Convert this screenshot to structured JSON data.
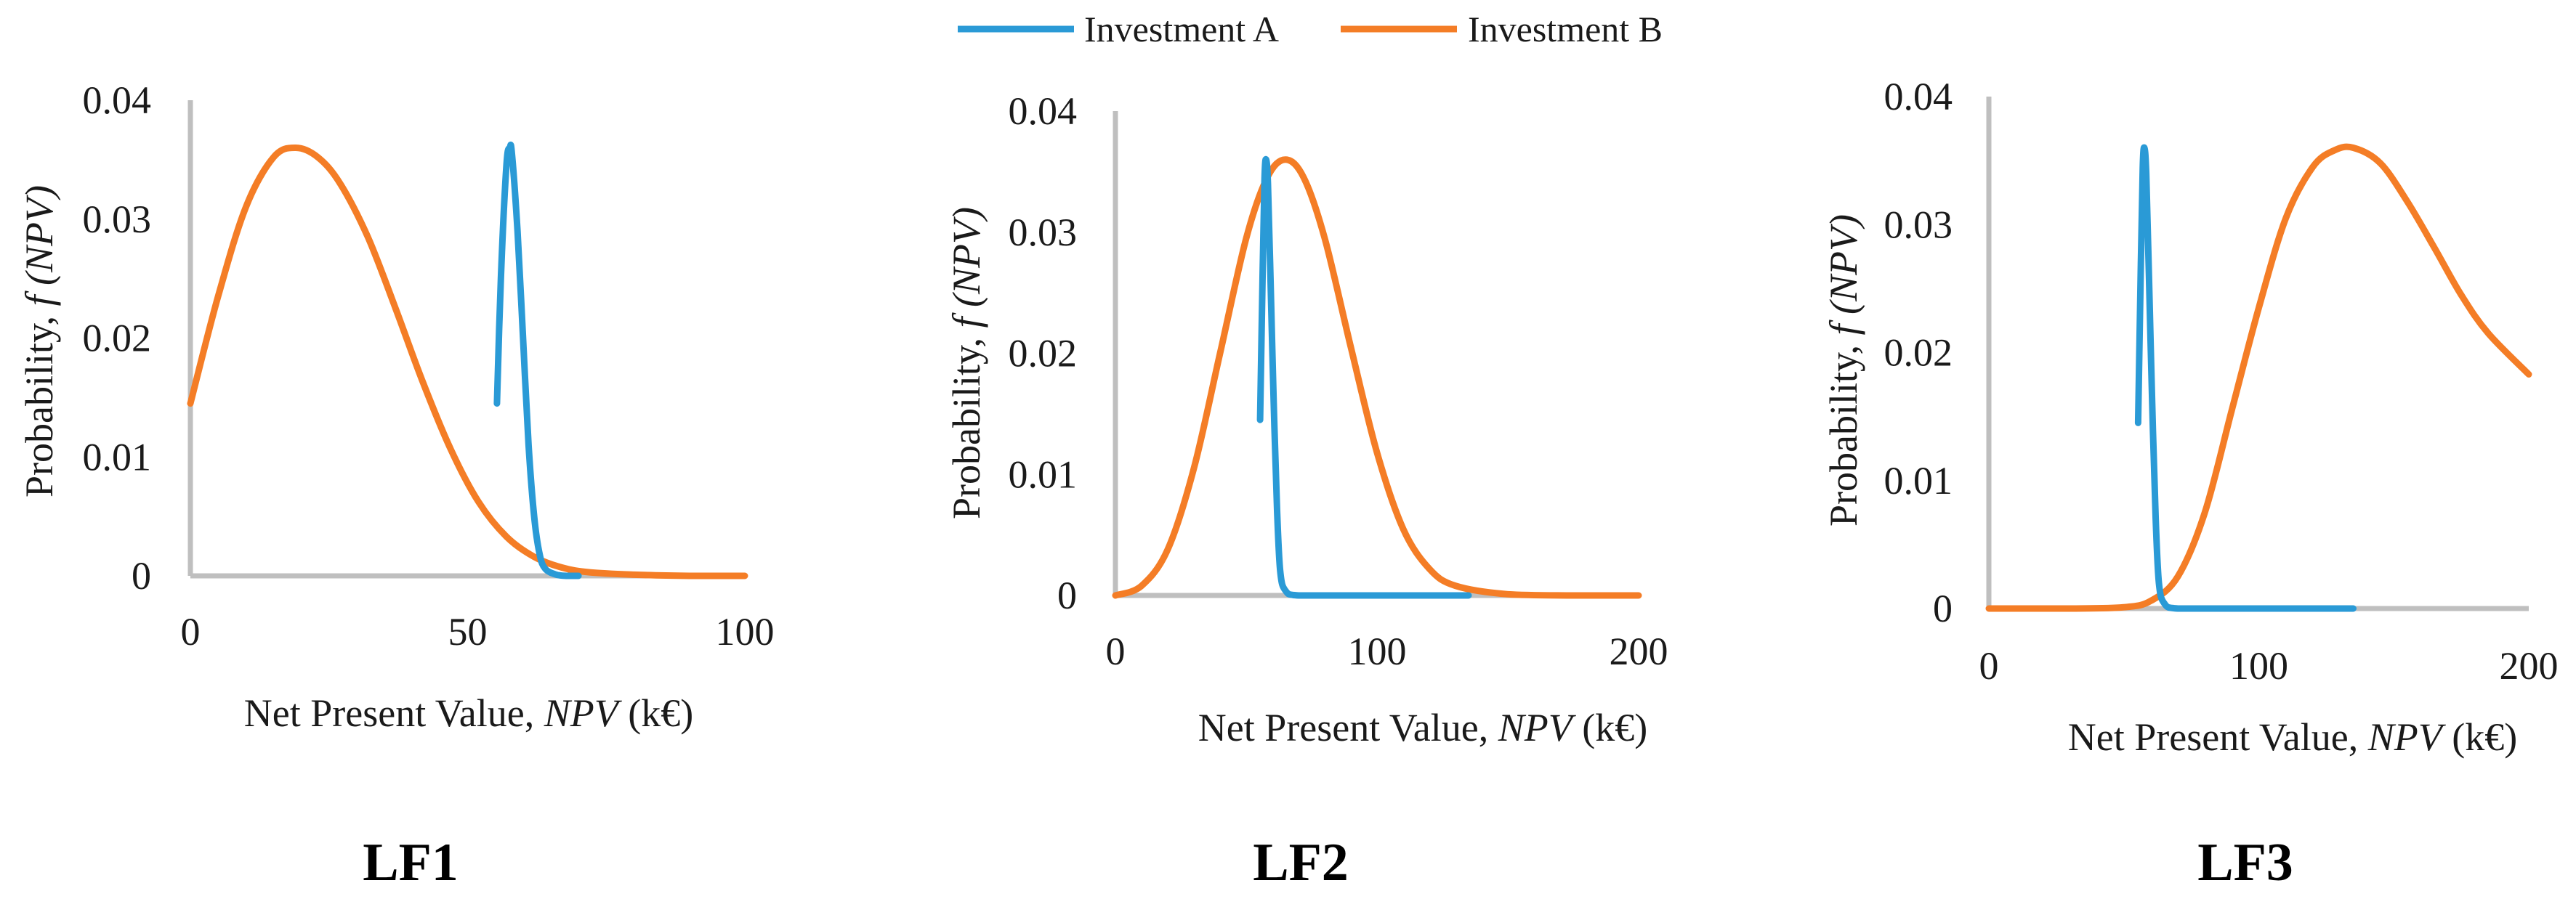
{
  "legend": [
    {
      "name": "Investment A",
      "color": "#2a9ad6"
    },
    {
      "name": "Investment B",
      "color": "#f47d26"
    }
  ],
  "chart_data": [
    {
      "type": "line",
      "label": "LF1",
      "xlabel_prefix": "Net Present Value, ",
      "xlabel_var": "NPV",
      "xlabel_suffix": " (k€)",
      "ylabel_prefix": "Probability, ",
      "ylabel_var": "f (NPV)",
      "xlim": [
        0,
        100
      ],
      "ylim": [
        0,
        0.04
      ],
      "xticks": [
        0,
        50,
        100
      ],
      "yticks": [
        0,
        0.01,
        0.02,
        0.03,
        0.04
      ],
      "ytick_labels": [
        "0",
        "0.01",
        "0.02",
        "0.03",
        "0.04"
      ],
      "series": [
        {
          "name": "Investment A",
          "x": [
            55.3,
            56,
            57,
            57.6,
            58,
            59,
            60,
            61,
            62,
            63,
            64,
            66,
            68,
            70
          ],
          "y": [
            0.0145,
            0.025,
            0.0345,
            0.036,
            0.0355,
            0.029,
            0.02,
            0.011,
            0.005,
            0.0018,
            0.0006,
            0.0001,
            0.0,
            0.0
          ]
        },
        {
          "name": "Investment B",
          "x": [
            0,
            5,
            10,
            15,
            19,
            23,
            27,
            32,
            37,
            42,
            47,
            52,
            57,
            62,
            67,
            72,
            80,
            90,
            100
          ],
          "y": [
            0.0145,
            0.0235,
            0.031,
            0.0352,
            0.036,
            0.0352,
            0.033,
            0.0285,
            0.0225,
            0.0162,
            0.0106,
            0.0062,
            0.0033,
            0.0016,
            0.0007,
            0.0003,
            0.0001,
            0.0,
            0.0
          ]
        }
      ]
    },
    {
      "type": "line",
      "label": "LF2",
      "xlabel_prefix": "Net Present Value, ",
      "xlabel_var": "NPV",
      "xlabel_suffix": " (k€)",
      "ylabel_prefix": "Probability, ",
      "ylabel_var": "f (NPV)",
      "xlim": [
        0,
        200
      ],
      "ylim": [
        0,
        0.04
      ],
      "xticks": [
        0,
        100,
        200
      ],
      "yticks": [
        0,
        0.01,
        0.02,
        0.03,
        0.04
      ],
      "ytick_labels": [
        "0",
        "0.01",
        "0.02",
        "0.03",
        "0.04"
      ],
      "series": [
        {
          "name": "Investment A",
          "x": [
            55.3,
            56.3,
            57,
            57.6,
            58.3,
            59.3,
            60.5,
            61.8,
            63,
            65,
            70,
            90,
            110,
            135
          ],
          "y": [
            0.0145,
            0.027,
            0.0345,
            0.036,
            0.034,
            0.026,
            0.016,
            0.007,
            0.002,
            0.0004,
            0.0,
            0.0,
            0.0,
            0.0
          ]
        },
        {
          "name": "Investment B",
          "x": [
            0,
            10,
            20,
            30,
            40,
            50,
            58,
            65,
            72,
            80,
            90,
            100,
            110,
            120,
            130,
            150,
            175,
            200
          ],
          "y": [
            0.0,
            0.0008,
            0.0038,
            0.0105,
            0.02,
            0.0295,
            0.0345,
            0.036,
            0.0345,
            0.0295,
            0.0205,
            0.0118,
            0.0055,
            0.0022,
            0.0008,
            0.0001,
            0.0,
            0.0
          ]
        }
      ]
    },
    {
      "type": "line",
      "label": "LF3",
      "xlabel_prefix": "Net Present Value, ",
      "xlabel_var": "NPV",
      "xlabel_suffix": " (k€)",
      "ylabel_prefix": "Probability, ",
      "ylabel_var": "f (NPV)",
      "xlim": [
        0,
        200
      ],
      "ylim": [
        0,
        0.04
      ],
      "xticks": [
        0,
        100,
        200
      ],
      "yticks": [
        0,
        0.01,
        0.02,
        0.03,
        0.04
      ],
      "ytick_labels": [
        "0",
        "0.01",
        "0.02",
        "0.03",
        "0.04"
      ],
      "series": [
        {
          "name": "Investment A",
          "x": [
            55.3,
            56.3,
            57,
            57.6,
            58.3,
            59.3,
            60.5,
            61.8,
            63,
            65,
            70,
            90,
            110,
            135
          ],
          "y": [
            0.0145,
            0.027,
            0.0345,
            0.036,
            0.034,
            0.026,
            0.016,
            0.007,
            0.002,
            0.0004,
            0.0,
            0.0,
            0.0,
            0.0
          ]
        },
        {
          "name": "Investment B",
          "x": [
            0,
            30,
            50,
            60,
            70,
            80,
            90,
            100,
            110,
            120,
            128,
            135,
            145,
            155,
            165,
            175,
            185,
            200
          ],
          "y": [
            0.0,
            0.0,
            0.0001,
            0.0006,
            0.0025,
            0.0075,
            0.0155,
            0.0235,
            0.0305,
            0.0345,
            0.0358,
            0.036,
            0.0348,
            0.0318,
            0.0282,
            0.0245,
            0.0215,
            0.0183
          ]
        }
      ]
    }
  ]
}
